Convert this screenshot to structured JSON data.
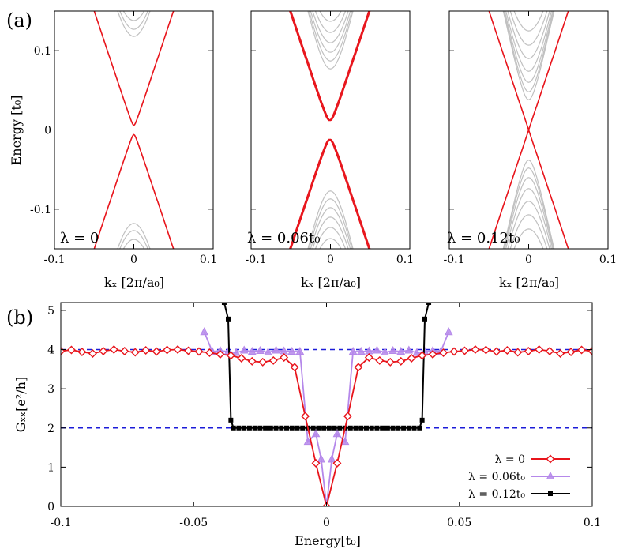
{
  "figure": {
    "panel_a_tag": "(a)",
    "panel_b_tag": "(b)"
  },
  "colors": {
    "red": "#e8141b",
    "gray": "#c0c0c0",
    "violet": "#b588ea",
    "black": "#000000",
    "blue": "#1c1cd8"
  },
  "chart_data": [
    {
      "type": "line",
      "panel": "a1",
      "lambda_label": "λ = 0",
      "gap": 0.006,
      "xlim": [
        -0.1,
        0.1
      ],
      "ylim": [
        -0.15,
        0.15
      ],
      "ylabel": "Energy [t₀]",
      "xlabel": "kₓ [2π/a₀]",
      "xtick_labels": [
        "-0.1",
        "0",
        "0.1"
      ],
      "ytick_labels": [
        "0.1",
        "0",
        "-0.1"
      ],
      "ytick_values": [
        0.1,
        0,
        -0.1
      ],
      "xtick_values": [
        -0.1,
        0,
        0.1
      ],
      "bulk_band_minima": [
        0.118,
        0.127,
        0.138,
        0.15
      ]
    },
    {
      "type": "line",
      "panel": "a2",
      "lambda_label": "λ = 0.06t₀",
      "gap": 0.012,
      "xlim": [
        -0.1,
        0.1
      ],
      "ylim": [
        -0.15,
        0.15
      ],
      "xlabel": "kₓ [2π/a₀]",
      "xtick_labels": [
        "-0.1",
        "0",
        "0.1"
      ],
      "xtick_values": [
        -0.1,
        0,
        0.1
      ],
      "bulk_band_minima": [
        0.077,
        0.087,
        0.098,
        0.11,
        0.123,
        0.137
      ]
    },
    {
      "type": "line",
      "panel": "a3",
      "lambda_label": "λ = 0.12t₀",
      "gap": 0.0,
      "xlim": [
        -0.1,
        0.1
      ],
      "ylim": [
        -0.15,
        0.15
      ],
      "xlabel": "kₓ [2π/a₀]",
      "xtick_labels": [
        "-0.1",
        "0",
        "0.1"
      ],
      "xtick_values": [
        -0.1,
        0,
        0.1
      ],
      "bulk_band_minima": [
        0.038,
        0.048,
        0.06,
        0.074,
        0.09,
        0.107,
        0.125
      ]
    },
    {
      "type": "line",
      "panel": "b",
      "xlim": [
        -0.1,
        0.1
      ],
      "ylim": [
        0,
        5.2
      ],
      "xlabel": "Energy[t₀]",
      "ylabel": "Gₓₓ[e²/h]",
      "xtick_labels": [
        "-0.1",
        "-0.05",
        "0",
        "0.05",
        "0.1"
      ],
      "xtick_values": [
        -0.1,
        -0.05,
        0,
        0.05,
        0.1
      ],
      "ytick_labels": [
        "0",
        "1",
        "2",
        "3",
        "4",
        "5"
      ],
      "ytick_values": [
        0,
        1,
        2,
        3,
        4,
        5
      ],
      "reference_lines": [
        4,
        2
      ],
      "series": [
        {
          "name": "λ = 0",
          "marker": "diamond",
          "x": [
            -0.1,
            -0.096,
            -0.092,
            -0.088,
            -0.084,
            -0.08,
            -0.076,
            -0.072,
            -0.068,
            -0.064,
            -0.06,
            -0.056,
            -0.052,
            -0.048,
            -0.044,
            -0.04,
            -0.036,
            -0.032,
            -0.028,
            -0.024,
            -0.02,
            -0.016,
            -0.012,
            -0.008,
            -0.004,
            0,
            0.004,
            0.008,
            0.012,
            0.016,
            0.02,
            0.024,
            0.028,
            0.032,
            0.036,
            0.04,
            0.044,
            0.048,
            0.052,
            0.056,
            0.06,
            0.064,
            0.068,
            0.072,
            0.076,
            0.08,
            0.084,
            0.088,
            0.092,
            0.096,
            0.1
          ],
          "values": [
            3.96,
            3.99,
            3.94,
            3.9,
            3.96,
            4.0,
            3.96,
            3.93,
            3.98,
            3.95,
            3.99,
            4.0,
            3.97,
            3.95,
            3.92,
            3.88,
            3.85,
            3.78,
            3.7,
            3.68,
            3.72,
            3.8,
            3.55,
            2.3,
            1.1,
            0.0,
            1.1,
            2.3,
            3.55,
            3.8,
            3.72,
            3.68,
            3.7,
            3.78,
            3.85,
            3.88,
            3.92,
            3.95,
            3.97,
            4.0,
            3.99,
            3.95,
            3.98,
            3.93,
            3.96,
            4.0,
            3.96,
            3.9,
            3.94,
            3.99,
            3.96
          ]
        },
        {
          "name": "λ = 0.06t₀",
          "marker": "triangle",
          "x": [
            -0.046,
            -0.043,
            -0.04,
            -0.037,
            -0.034,
            -0.031,
            -0.028,
            -0.025,
            -0.022,
            -0.019,
            -0.016,
            -0.013,
            -0.01,
            -0.007,
            -0.004,
            -0.002,
            0,
            0.002,
            0.004,
            0.007,
            0.01,
            0.013,
            0.016,
            0.019,
            0.022,
            0.025,
            0.028,
            0.031,
            0.034,
            0.037,
            0.04,
            0.043,
            0.046
          ],
          "values": [
            4.45,
            3.95,
            3.97,
            3.95,
            3.92,
            3.98,
            3.95,
            3.97,
            3.93,
            3.98,
            3.96,
            3.95,
            3.95,
            1.65,
            1.85,
            1.2,
            0.0,
            1.2,
            1.85,
            1.65,
            3.95,
            3.95,
            3.96,
            3.98,
            3.93,
            3.97,
            3.95,
            3.98,
            3.92,
            3.95,
            3.97,
            3.95,
            4.45
          ]
        },
        {
          "name": "λ = 0.12t₀",
          "marker": "square",
          "x": [
            -0.0385,
            -0.037,
            -0.036,
            -0.035,
            -0.033,
            -0.031,
            -0.029,
            -0.027,
            -0.025,
            -0.023,
            -0.021,
            -0.019,
            -0.017,
            -0.015,
            -0.013,
            -0.011,
            -0.009,
            -0.007,
            -0.005,
            -0.003,
            -0.001,
            0.001,
            0.003,
            0.005,
            0.007,
            0.009,
            0.011,
            0.013,
            0.015,
            0.017,
            0.019,
            0.021,
            0.023,
            0.025,
            0.027,
            0.029,
            0.031,
            0.033,
            0.035,
            0.036,
            0.037,
            0.0385
          ],
          "values": [
            5.2,
            4.78,
            2.2,
            2.0,
            2.0,
            2.0,
            2.0,
            2.0,
            2.0,
            2.0,
            2.0,
            2.0,
            2.0,
            2.0,
            2.0,
            2.0,
            2.0,
            2.0,
            2.0,
            2.0,
            2.0,
            2.0,
            2.0,
            2.0,
            2.0,
            2.0,
            2.0,
            2.0,
            2.0,
            2.0,
            2.0,
            2.0,
            2.0,
            2.0,
            2.0,
            2.0,
            2.0,
            2.0,
            2.0,
            2.2,
            4.78,
            5.2
          ]
        }
      ]
    }
  ]
}
